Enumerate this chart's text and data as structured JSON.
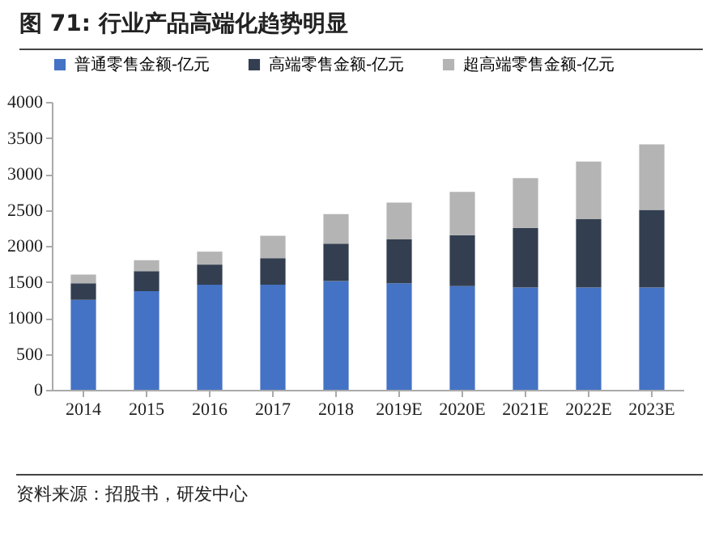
{
  "chart_data": {
    "type": "bar",
    "title": "图 71: 行业产品高端化趋势明显",
    "annotations": [
      "资料来源：招股书，研发中心"
    ],
    "categories": [
      "2014",
      "2015",
      "2016",
      "2017",
      "2018",
      "2019E",
      "2020E",
      "2021E",
      "2022E",
      "2023E"
    ],
    "stacked": true,
    "legend": "top",
    "ylim": [
      0,
      4000
    ],
    "yticks": [
      0,
      500,
      1000,
      1500,
      2000,
      2500,
      3000,
      3500,
      4000
    ],
    "grid": false,
    "series": [
      {
        "name": "普通零售金额-亿元",
        "color": "#4472c4",
        "values": [
          1250,
          1370,
          1460,
          1460,
          1510,
          1480,
          1440,
          1420,
          1420,
          1420
        ]
      },
      {
        "name": "高端零售金额-亿元",
        "color": "#333f50",
        "values": [
          230,
          280,
          280,
          370,
          520,
          610,
          710,
          830,
          950,
          1080
        ]
      },
      {
        "name": "超高端零售金额-亿元",
        "color": "#b4b4b4",
        "values": [
          120,
          150,
          180,
          310,
          410,
          510,
          600,
          690,
          800,
          910
        ]
      }
    ]
  }
}
